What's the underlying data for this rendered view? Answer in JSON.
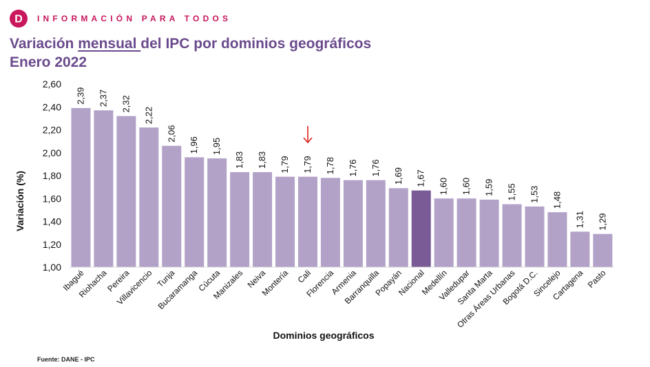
{
  "header": {
    "brand_text": "INFORMACIÓN PARA TODOS",
    "logo_letter": "D",
    "brand_color": "#c8175d"
  },
  "title": {
    "prefix": "Variación ",
    "underlined": "mensual ",
    "suffix": "del IPC por dominios geográficos",
    "line2": "Enero 2022",
    "color": "#6a4a8c"
  },
  "source": "Fuente: DANE - IPC",
  "annotation": {
    "icon": "red-down-arrow-icon",
    "target": "Cali",
    "color": "#e0201a"
  },
  "chart_data": {
    "type": "bar",
    "xlabel": "Dominios geográficos",
    "ylabel": "Variación (%)",
    "ylim": [
      1.0,
      2.6
    ],
    "yticks": [
      "1,00",
      "1,20",
      "1,40",
      "1,60",
      "1,80",
      "2,00",
      "2,20",
      "2,40",
      "2,60"
    ],
    "grid": false,
    "bar_color": "#b3a2c8",
    "highlight_color": "#7b5b96",
    "highlight": "Nacional",
    "categories": [
      "Ibagué",
      "Riohacha",
      "Pereira",
      "Villavicencio",
      "Tunja",
      "Bucaramanga",
      "Cúcuta",
      "Manizales",
      "Neiva",
      "Montería",
      "Cali",
      "Florencia",
      "Armenia",
      "Barranquilla",
      "Popayán",
      "Nacional",
      "Medellín",
      "Valledupar",
      "Santa Marta",
      "Otras Áreas Urbanas",
      "Bogotá D.C.",
      "Sincelejo",
      "Cartagena",
      "Pasto"
    ],
    "values": [
      2.39,
      2.37,
      2.32,
      2.22,
      2.06,
      1.96,
      1.95,
      1.83,
      1.83,
      1.79,
      1.79,
      1.78,
      1.76,
      1.76,
      1.69,
      1.67,
      1.6,
      1.6,
      1.59,
      1.55,
      1.53,
      1.48,
      1.31,
      1.29
    ],
    "value_labels": [
      "2,39",
      "2,37",
      "2,32",
      "2,22",
      "2,06",
      "1,96",
      "1,95",
      "1,83",
      "1,83",
      "1,79",
      "1,79",
      "1,78",
      "1,76",
      "1,76",
      "1,69",
      "1,67",
      "1,60",
      "1,60",
      "1,59",
      "1,55",
      "1,53",
      "1,48",
      "1,31",
      "1,29"
    ]
  }
}
